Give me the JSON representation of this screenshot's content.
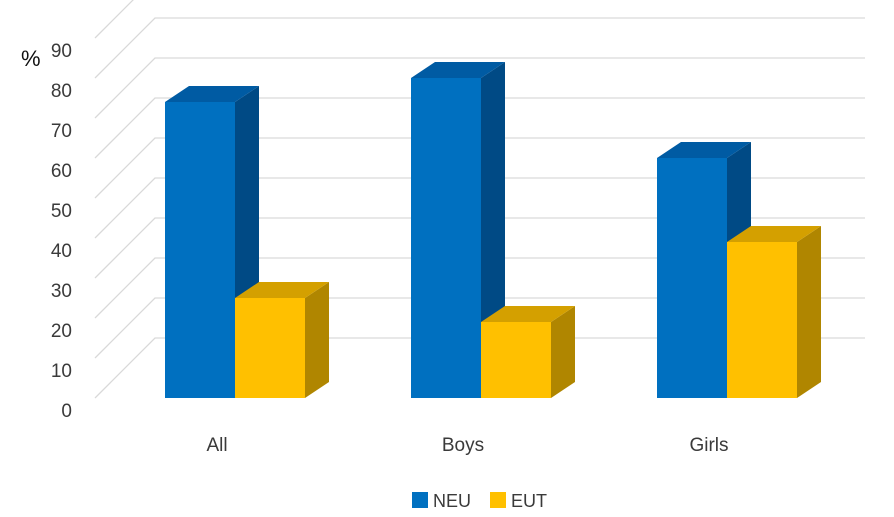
{
  "chart_data": {
    "type": "bar",
    "three_d": true,
    "categories": [
      "All",
      "Boys",
      "Girls"
    ],
    "series": [
      {
        "name": "NEU",
        "values": [
          74,
          80,
          60
        ],
        "color": "#0070C0",
        "side_color": "#004A85",
        "top_color": "#005BA3"
      },
      {
        "name": "EUT",
        "values": [
          25,
          19,
          39
        ],
        "color": "#FFC000",
        "side_color": "#B08600",
        "top_color": "#D4A000"
      }
    ],
    "y_ticks": [
      0,
      10,
      20,
      30,
      40,
      50,
      60,
      70,
      80,
      90
    ],
    "ylim": [
      0,
      100
    ],
    "y_unit": "%",
    "grid": true,
    "legend_position": "bottom",
    "title": "",
    "xlabel": "",
    "ylabel": ""
  }
}
